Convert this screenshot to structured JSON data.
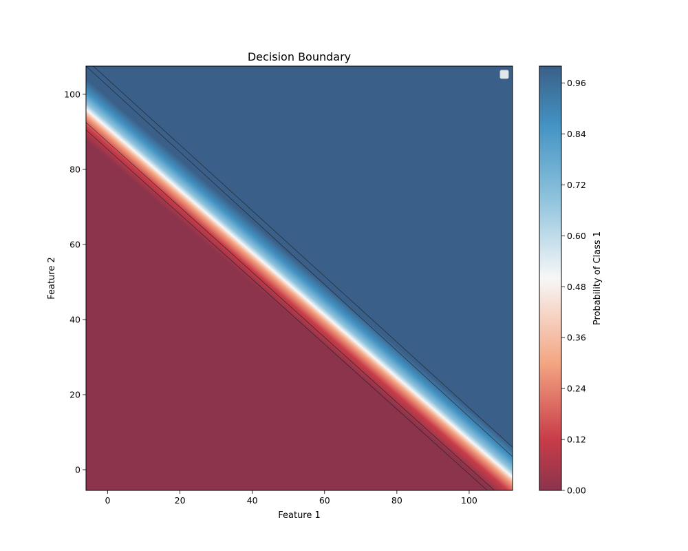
{
  "chart_data": {
    "type": "heatmap",
    "title": "Decision Boundary",
    "xlabel": "Feature 1",
    "ylabel": "Feature 2",
    "xlim": [
      -6,
      112
    ],
    "ylim": [
      -5.5,
      107.5
    ],
    "xticks": [
      0,
      20,
      40,
      60,
      80,
      100
    ],
    "yticks": [
      0,
      20,
      40,
      60,
      80,
      100
    ],
    "decision_boundary": {
      "probability": 0.5,
      "points": [
        [
          -6,
          96
        ],
        [
          112,
          -2
        ]
      ]
    },
    "contour_lines": [
      {
        "level": "low",
        "points": [
          [
            -6,
            90.5
          ],
          [
            105,
            -5.5
          ]
        ]
      },
      {
        "level": "low",
        "points": [
          [
            -6,
            92.5
          ],
          [
            107,
            -5.5
          ]
        ]
      },
      {
        "level": "high",
        "points": [
          [
            -6,
            107.5
          ],
          [
            112,
            3.5
          ]
        ]
      },
      {
        "level": "high",
        "points": [
          [
            -4,
            107.5
          ],
          [
            112,
            6
          ]
        ]
      }
    ],
    "colorbar": {
      "label": "Probability of Class 1",
      "range": [
        0.0,
        1.0
      ],
      "ticks": [
        "0.00",
        "0.12",
        "0.24",
        "0.36",
        "0.48",
        "0.60",
        "0.72",
        "0.84",
        "0.96"
      ],
      "colors": {
        "class0": "#8b344c",
        "red_mid": "#c83c48",
        "red_light": "#f4a582",
        "neutral": "#f7f7f7",
        "blue_light": "#92c5de",
        "blue_mid": "#4393c3",
        "class1": "#3a5f88"
      }
    },
    "legend": {
      "position": "top-right",
      "entries": []
    },
    "grid": false
  }
}
